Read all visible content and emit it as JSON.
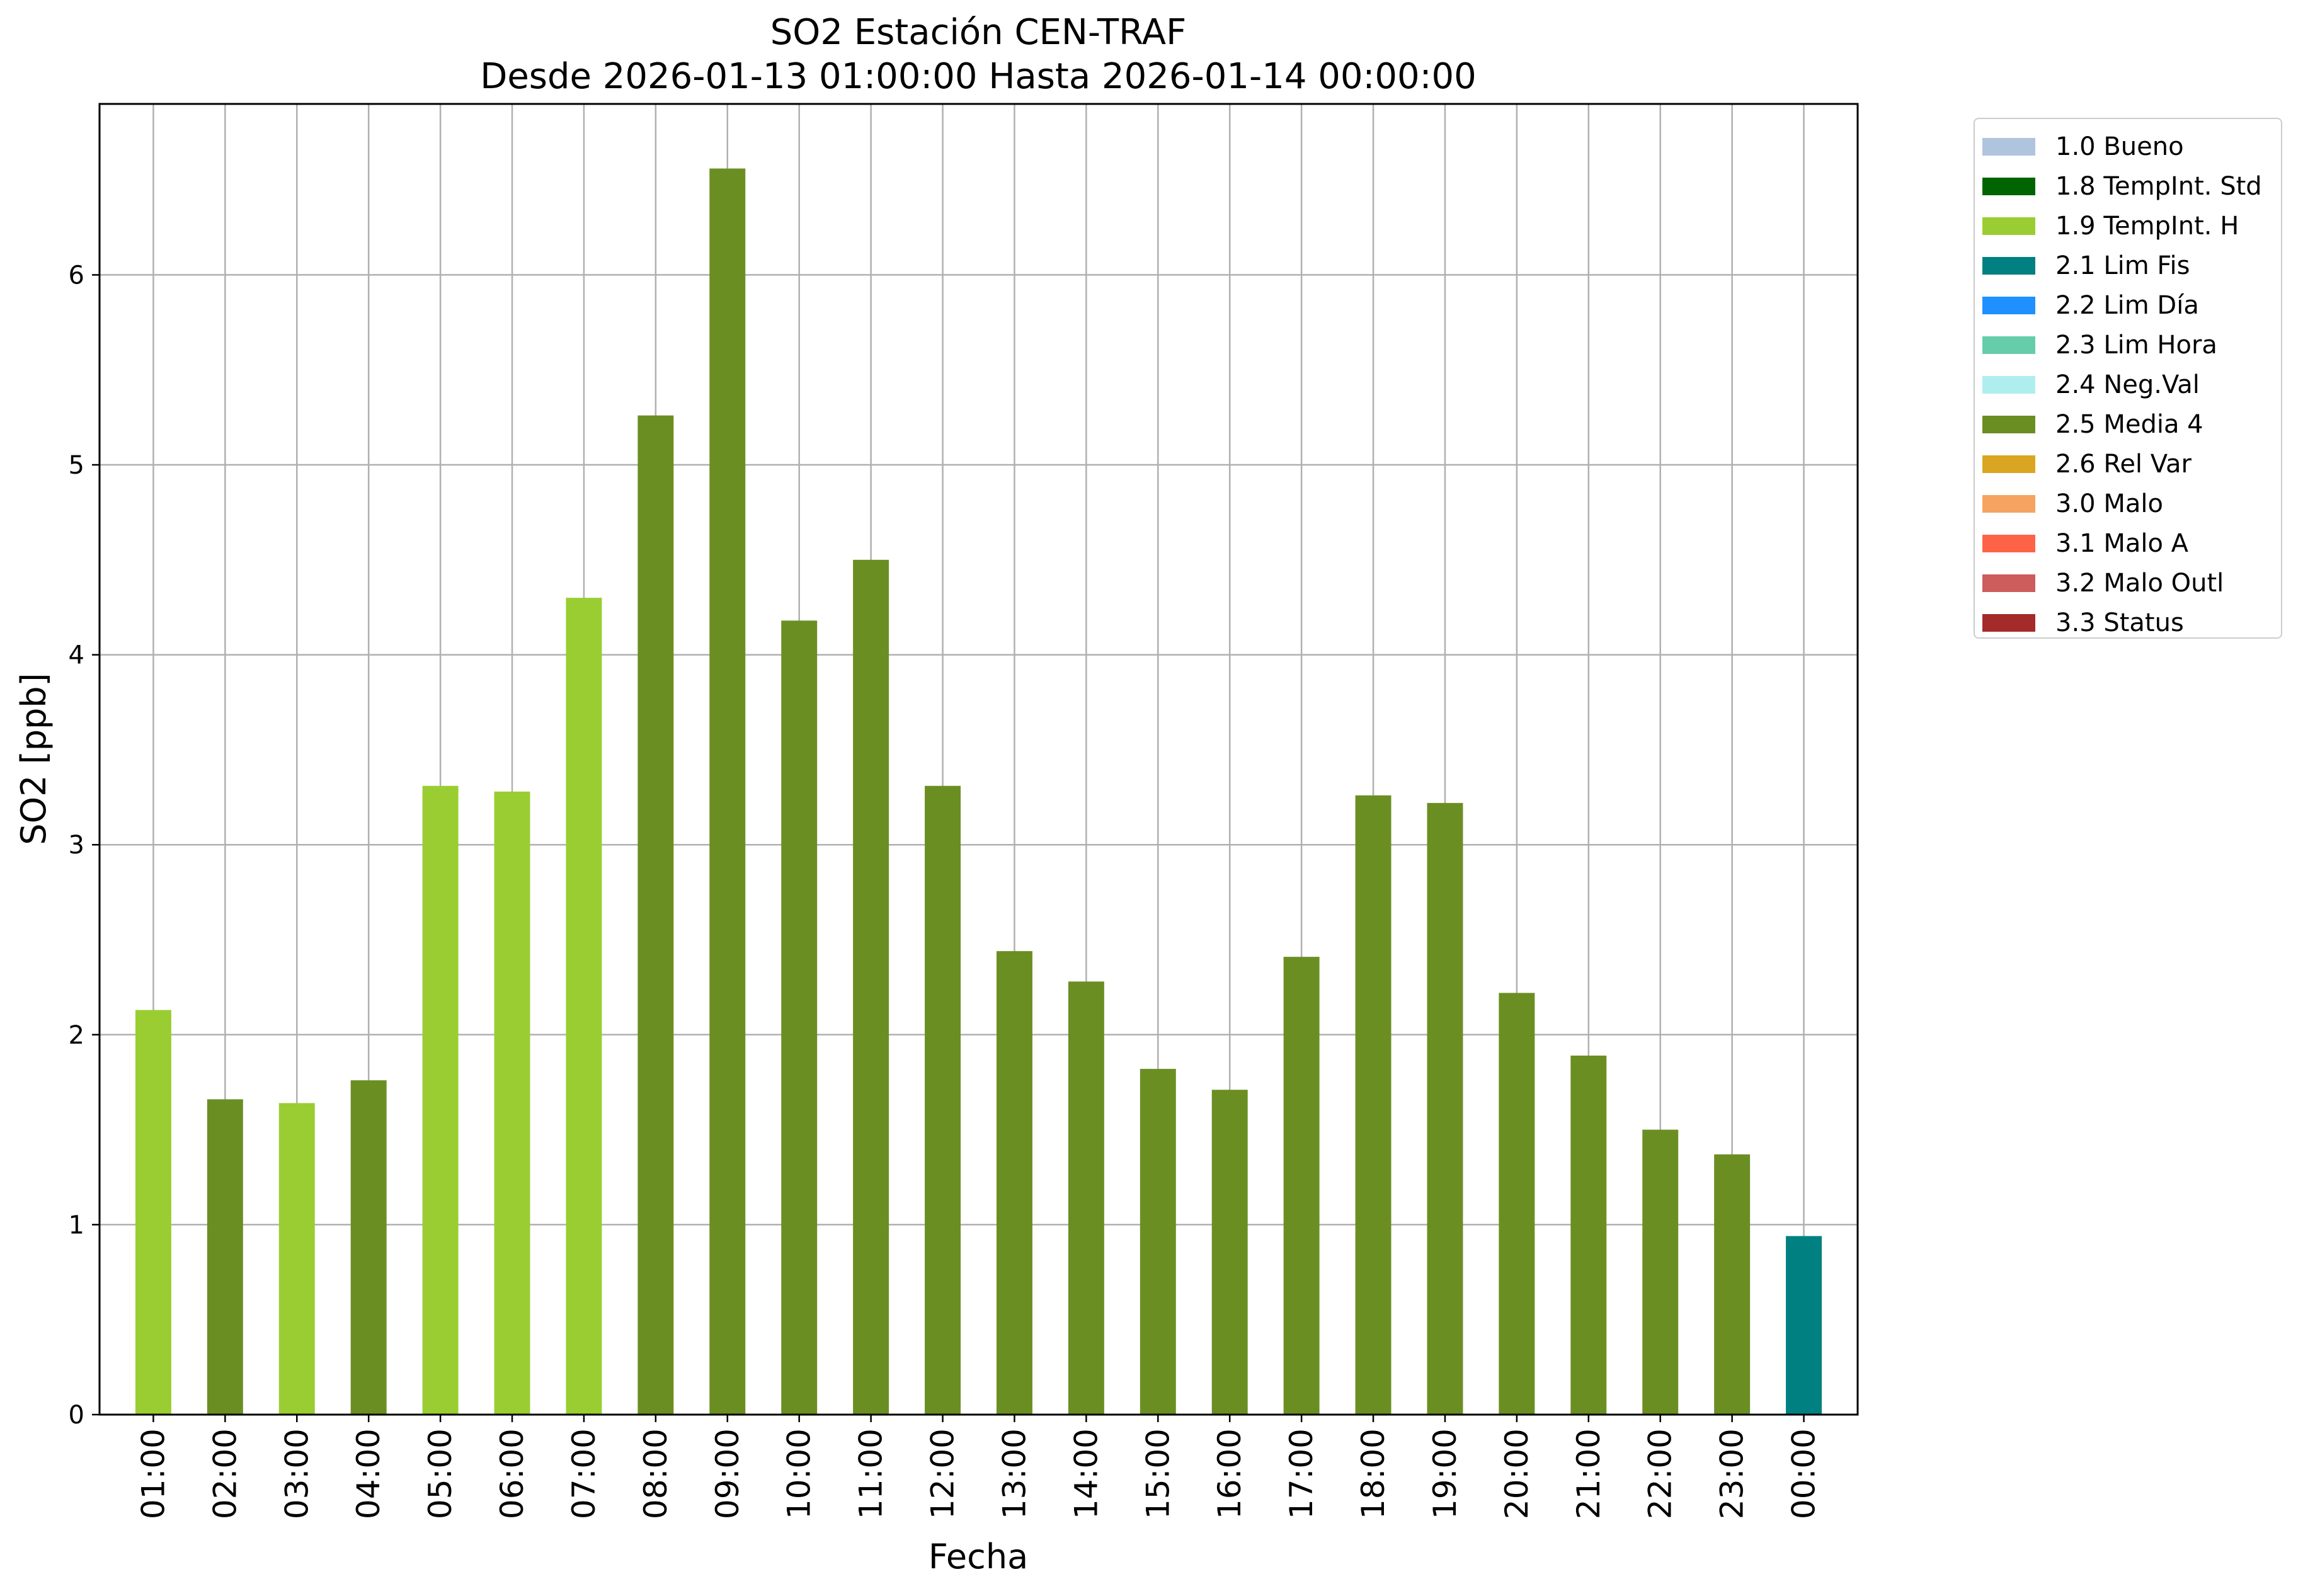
{
  "chart_data": {
    "type": "bar",
    "title": "SO2 Estación CEN-TRAF",
    "subtitle": "Desde 2026-01-13 01:00:00 Hasta 2026-01-14 00:00:00",
    "xlabel": "Fecha",
    "ylabel": "SO2 [ppb]",
    "ylim": [
      0,
      6.9
    ],
    "yticks": [
      "0",
      "1",
      "2",
      "3",
      "4",
      "5",
      "6"
    ],
    "grid": true,
    "legend_position": "outside-top-right",
    "categories": [
      "01:00",
      "02:00",
      "03:00",
      "04:00",
      "05:00",
      "06:00",
      "07:00",
      "08:00",
      "09:00",
      "10:00",
      "11:00",
      "12:00",
      "13:00",
      "14:00",
      "15:00",
      "16:00",
      "17:00",
      "18:00",
      "19:00",
      "20:00",
      "21:00",
      "22:00",
      "23:00",
      "00:00"
    ],
    "values": [
      2.13,
      1.66,
      1.64,
      1.76,
      3.31,
      3.28,
      4.3,
      5.26,
      6.56,
      4.18,
      4.5,
      3.31,
      2.44,
      2.28,
      1.82,
      1.71,
      2.41,
      3.26,
      3.22,
      2.22,
      1.89,
      1.5,
      1.37,
      0.94
    ],
    "flags": [
      "1.9",
      "2.5",
      "1.9",
      "2.5",
      "1.9",
      "1.9",
      "1.9",
      "2.5",
      "2.5",
      "2.5",
      "2.5",
      "2.5",
      "2.5",
      "2.5",
      "2.5",
      "2.5",
      "2.5",
      "2.5",
      "2.5",
      "2.5",
      "2.5",
      "2.5",
      "2.5",
      "2.1"
    ],
    "legend": [
      {
        "code": "1.0",
        "label": "1.0 Bueno",
        "color": "#b0c4de"
      },
      {
        "code": "1.8",
        "label": "1.8 TempInt. Std",
        "color": "#006400"
      },
      {
        "code": "1.9",
        "label": "1.9 TempInt. H",
        "color": "#9acd32"
      },
      {
        "code": "2.1",
        "label": "2.1 Lim Fis",
        "color": "#008080"
      },
      {
        "code": "2.2",
        "label": "2.2 Lim Día",
        "color": "#1e90ff"
      },
      {
        "code": "2.3",
        "label": "2.3 Lim Hora",
        "color": "#66cdaa"
      },
      {
        "code": "2.4",
        "label": "2.4 Neg.Val",
        "color": "#afeeee"
      },
      {
        "code": "2.5",
        "label": "2.5 Media 4",
        "color": "#6b8e23"
      },
      {
        "code": "2.6",
        "label": "2.6 Rel Var",
        "color": "#daa520"
      },
      {
        "code": "3.0",
        "label": "3.0 Malo",
        "color": "#f4a460"
      },
      {
        "code": "3.1",
        "label": "3.1 Malo A",
        "color": "#ff6347"
      },
      {
        "code": "3.2",
        "label": "3.2 Malo Outl",
        "color": "#cd5c5c"
      },
      {
        "code": "3.3",
        "label": "3.3 Status",
        "color": "#a52a2a"
      }
    ]
  }
}
